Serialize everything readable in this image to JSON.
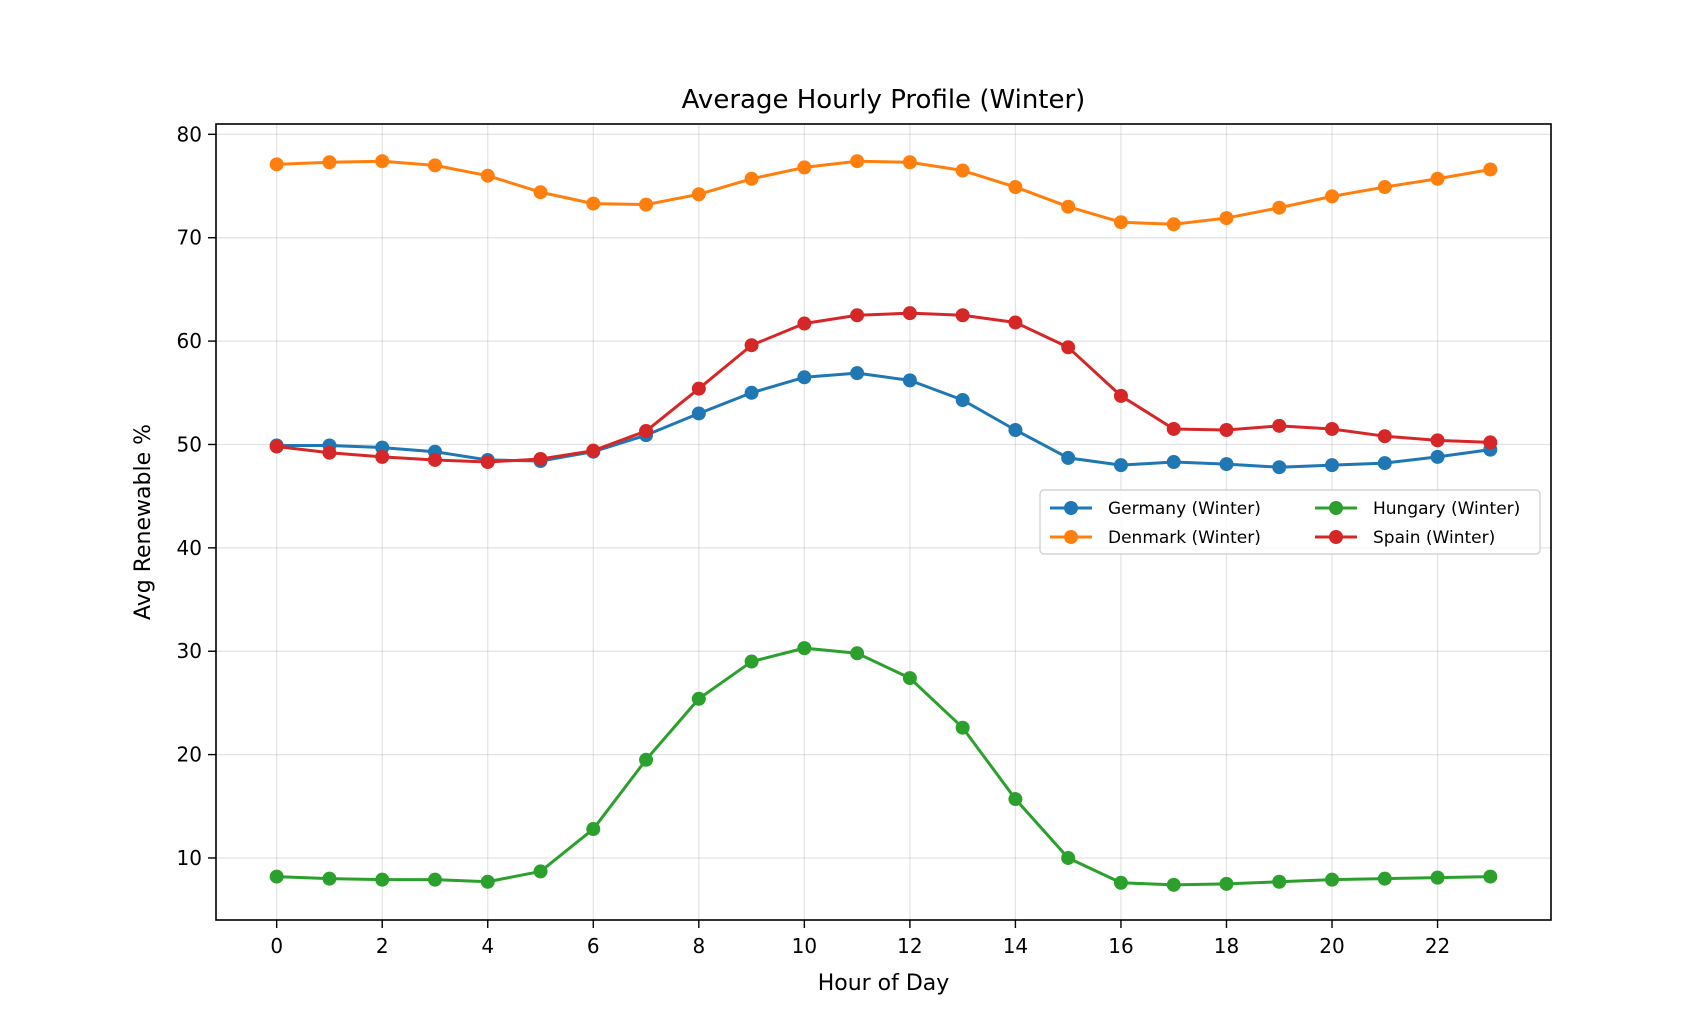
{
  "chart_data": {
    "type": "line",
    "title": "Average Hourly Profile (Winter)",
    "xlabel": "Hour of Day",
    "ylabel": "Avg Renewable %",
    "xlim": [
      -1.15,
      24.15
    ],
    "ylim": [
      4.0,
      81.0
    ],
    "xticks": [
      0,
      2,
      4,
      6,
      8,
      10,
      12,
      14,
      16,
      18,
      20,
      22
    ],
    "yticks": [
      10,
      20,
      30,
      40,
      50,
      60,
      70,
      80
    ],
    "grid": true,
    "legend_position": "center-right",
    "x": [
      0,
      1,
      2,
      3,
      4,
      5,
      6,
      7,
      8,
      9,
      10,
      11,
      12,
      13,
      14,
      15,
      16,
      17,
      18,
      19,
      20,
      21,
      22,
      23
    ],
    "series": [
      {
        "name": "Germany (Winter)",
        "color": "#1f77b4",
        "values": [
          49.9,
          49.9,
          49.7,
          49.3,
          48.5,
          48.4,
          49.3,
          50.9,
          53.0,
          55.0,
          56.5,
          56.9,
          56.2,
          54.3,
          51.4,
          48.7,
          48.0,
          48.3,
          48.1,
          47.8,
          48.0,
          48.2,
          48.8,
          49.5
        ]
      },
      {
        "name": "Denmark (Winter)",
        "color": "#ff7f0e",
        "values": [
          77.1,
          77.3,
          77.4,
          77.0,
          76.0,
          74.4,
          73.3,
          73.2,
          74.2,
          75.7,
          76.8,
          77.4,
          77.3,
          76.5,
          74.9,
          73.0,
          71.5,
          71.3,
          71.9,
          72.9,
          74.0,
          74.9,
          75.7,
          76.6
        ]
      },
      {
        "name": "Hungary (Winter)",
        "color": "#2ca02c",
        "values": [
          8.2,
          8.0,
          7.9,
          7.9,
          7.7,
          8.7,
          12.8,
          19.5,
          25.4,
          29.0,
          30.3,
          29.8,
          27.4,
          22.6,
          15.7,
          10.0,
          7.6,
          7.4,
          7.5,
          7.7,
          7.9,
          8.0,
          8.1,
          8.2
        ]
      },
      {
        "name": "Spain (Winter)",
        "color": "#d62728",
        "values": [
          49.8,
          49.2,
          48.8,
          48.5,
          48.3,
          48.6,
          49.4,
          51.3,
          55.4,
          59.6,
          61.7,
          62.5,
          62.7,
          62.5,
          61.8,
          59.4,
          54.7,
          51.5,
          51.4,
          51.8,
          51.5,
          50.8,
          50.4,
          50.2
        ]
      }
    ]
  }
}
